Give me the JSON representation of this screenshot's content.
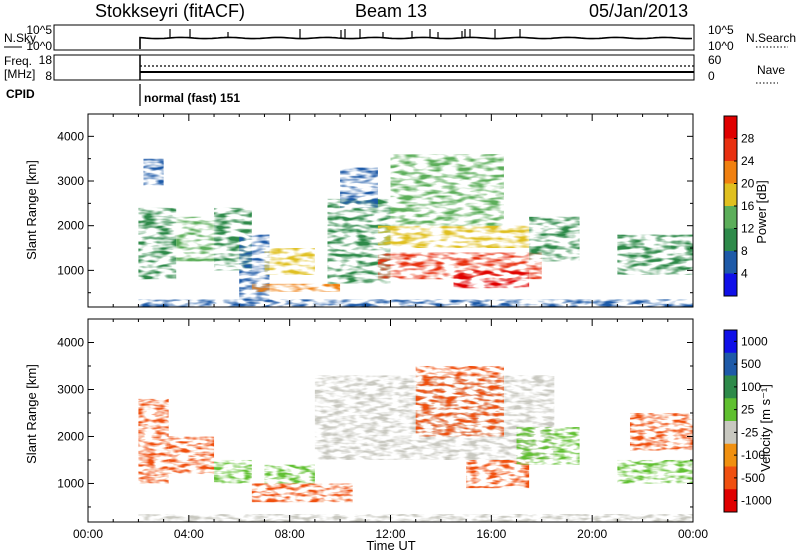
{
  "header": {
    "station": "Stokkseyri (fitACF)",
    "beam": "Beam 13",
    "date": "05/Jan/2013"
  },
  "summary": {
    "nsky_label": "N.Sky",
    "nsky_ticks": [
      "10^5",
      "10^0"
    ],
    "nsearch_label": "N.Search",
    "nsearch_ticks": [
      "10^5",
      "10^0"
    ],
    "freq_label": "Freq.",
    "freq_unit": "[MHz]",
    "freq_ticks": [
      "18",
      "8"
    ],
    "nave_label": "Nave",
    "nave_ticks": [
      "60",
      "0"
    ],
    "cpid_label": "CPID",
    "cpid_value": "normal (fast) 151"
  },
  "colors": {
    "power_scale": [
      "#1010e8",
      "#1e5aa8",
      "#2e8a4a",
      "#5cae5a",
      "#e0c020",
      "#f08010",
      "#e83010",
      "#e00000"
    ],
    "velocity_scale": [
      "#e00000",
      "#f05010",
      "#f09010",
      "#c8c8c0",
      "#60c030",
      "#2e8a4a",
      "#1e5aa8",
      "#1010e8"
    ],
    "curve": "#000000"
  },
  "chart_data": [
    {
      "type": "heatmap",
      "quantity": "Power",
      "ylabel": "Slant Range [km]",
      "yticks": [
        "1000",
        "2000",
        "3000",
        "4000"
      ],
      "ylim": [
        180,
        4500
      ],
      "xlim": [
        "00:00",
        "24:00"
      ],
      "colorbar_label": "Power [dB]",
      "colorbar_ticks": [
        "4",
        "8",
        "12",
        "16",
        "20",
        "24",
        "28"
      ],
      "clim": [
        0,
        32
      ],
      "echo_regions": [
        {
          "t": [
            2.0,
            3.5
          ],
          "r": [
            800,
            2400
          ],
          "value": 10
        },
        {
          "t": [
            2.2,
            3.0
          ],
          "r": [
            2900,
            3500
          ],
          "value": 6
        },
        {
          "t": [
            3.5,
            5.0
          ],
          "r": [
            1200,
            2200
          ],
          "value": 12
        },
        {
          "t": [
            5.0,
            6.5
          ],
          "r": [
            1000,
            2400
          ],
          "value": 8
        },
        {
          "t": [
            6.0,
            7.2
          ],
          "r": [
            200,
            1800
          ],
          "value": 6
        },
        {
          "t": [
            7.0,
            9.0
          ],
          "r": [
            900,
            1500
          ],
          "value": 16
        },
        {
          "t": [
            6.5,
            10.0
          ],
          "r": [
            520,
            700
          ],
          "value": 22
        },
        {
          "t": [
            9.5,
            12.0
          ],
          "r": [
            700,
            2600
          ],
          "value": 8
        },
        {
          "t": [
            10.0,
            11.5
          ],
          "r": [
            2400,
            3300
          ],
          "value": 6
        },
        {
          "t": [
            11.5,
            17.5
          ],
          "r": [
            1500,
            2000
          ],
          "value": 18
        },
        {
          "t": [
            11.5,
            18.0
          ],
          "r": [
            800,
            1400
          ],
          "value": 24
        },
        {
          "t": [
            14.5,
            17.5
          ],
          "r": [
            600,
            1000
          ],
          "value": 28
        },
        {
          "t": [
            12.0,
            16.5
          ],
          "r": [
            2000,
            3600
          ],
          "value": 14
        },
        {
          "t": [
            17.5,
            19.5
          ],
          "r": [
            1200,
            2200
          ],
          "value": 8
        },
        {
          "t": [
            21.0,
            24.0
          ],
          "r": [
            900,
            1800
          ],
          "value": 10
        },
        {
          "t": [
            2.0,
            24.0
          ],
          "r": [
            180,
            350
          ],
          "value": 4
        }
      ]
    },
    {
      "type": "heatmap",
      "quantity": "Velocity",
      "ylabel": "Slant Range [km]",
      "yticks": [
        "1000",
        "2000",
        "3000",
        "4000"
      ],
      "ylim": [
        180,
        4500
      ],
      "xlim": [
        "00:00",
        "24:00"
      ],
      "xlabel": "Time UT",
      "xticks": [
        "00:00",
        "04:00",
        "08:00",
        "12:00",
        "16:00",
        "20:00",
        "00:00"
      ],
      "colorbar_label": "Velocity [m s⁻¹]",
      "colorbar_ticks": [
        "-1000",
        "-500",
        "-100",
        "-25",
        "25",
        "100",
        "500",
        "1000"
      ],
      "echo_regions": [
        {
          "t": [
            2.0,
            3.2
          ],
          "r": [
            1000,
            2800
          ],
          "value": -200
        },
        {
          "t": [
            3.2,
            5.0
          ],
          "r": [
            1200,
            2000
          ],
          "value": -300
        },
        {
          "t": [
            5.0,
            6.5
          ],
          "r": [
            1000,
            1500
          ],
          "value": 60
        },
        {
          "t": [
            6.5,
            10.5
          ],
          "r": [
            600,
            1000
          ],
          "value": -120
        },
        {
          "t": [
            7.0,
            9.0
          ],
          "r": [
            1000,
            1400
          ],
          "value": 40
        },
        {
          "t": [
            9.0,
            18.5
          ],
          "r": [
            1500,
            3300
          ],
          "value": 0
        },
        {
          "t": [
            13.0,
            16.5
          ],
          "r": [
            2000,
            3500
          ],
          "value": -300
        },
        {
          "t": [
            15.0,
            17.5
          ],
          "r": [
            900,
            1500
          ],
          "value": -400
        },
        {
          "t": [
            17.0,
            19.5
          ],
          "r": [
            1400,
            2200
          ],
          "value": 70
        },
        {
          "t": [
            21.5,
            24.0
          ],
          "r": [
            1700,
            2500
          ],
          "value": -300
        },
        {
          "t": [
            21.0,
            24.0
          ],
          "r": [
            1000,
            1500
          ],
          "value": 60
        },
        {
          "t": [
            2.0,
            24.0
          ],
          "r": [
            180,
            350
          ],
          "value": 0
        }
      ]
    }
  ]
}
